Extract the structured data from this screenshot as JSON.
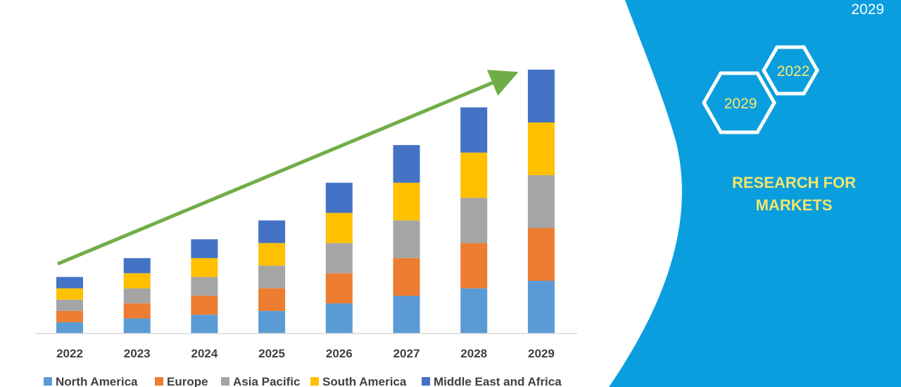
{
  "panel": {
    "corner_year": "2029",
    "hex_labels": [
      "2022",
      "2029"
    ],
    "brand_line1": "RESEARCH FOR",
    "brand_line2": "MARKETS",
    "accent": "#0b9ede"
  },
  "chart_data": {
    "type": "bar",
    "stacked": true,
    "categories": [
      "2022",
      "2023",
      "2024",
      "2025",
      "2026",
      "2027",
      "2028",
      "2029"
    ],
    "series": [
      {
        "name": "North America",
        "color": "#5b9bd5",
        "values": [
          3,
          4,
          5,
          6,
          8,
          10,
          12,
          14
        ]
      },
      {
        "name": "Europe",
        "color": "#ed7d31",
        "values": [
          3,
          4,
          5,
          6,
          8,
          10,
          12,
          14
        ]
      },
      {
        "name": "Asia Pacific",
        "color": "#a5a5a5",
        "values": [
          3,
          4,
          5,
          6,
          8,
          10,
          12,
          14
        ]
      },
      {
        "name": "South America",
        "color": "#ffc000",
        "values": [
          3,
          4,
          5,
          6,
          8,
          10,
          12,
          14
        ]
      },
      {
        "name": "Middle East and Africa",
        "color": "#4472c4",
        "values": [
          3,
          4,
          5,
          6,
          8,
          10,
          12,
          14
        ]
      }
    ],
    "ylim": [
      0,
      70
    ],
    "grid": false,
    "legend": "bottom",
    "trend_arrow_color": "#70ad47"
  }
}
